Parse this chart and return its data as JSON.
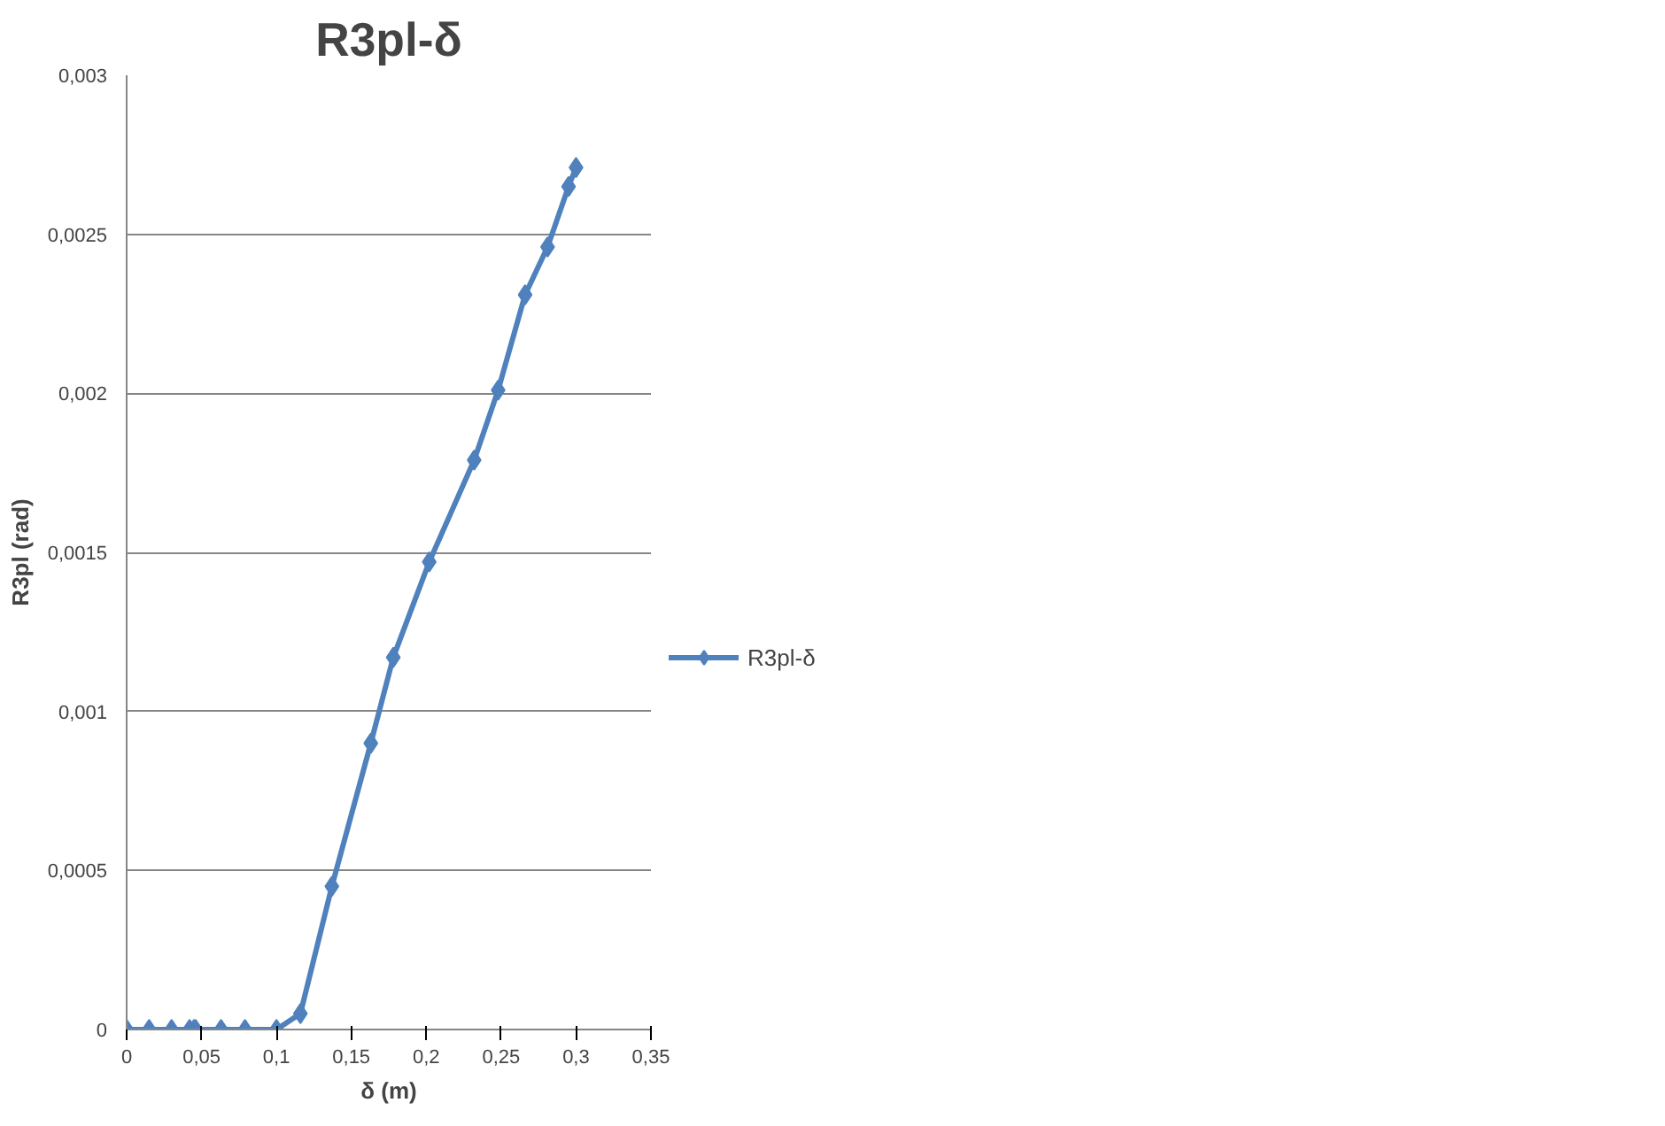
{
  "chart_data": {
    "type": "line",
    "title": "R3pl-δ",
    "xlabel": "δ (m)",
    "ylabel": "R3pl (rad)",
    "xlim": [
      0,
      0.35
    ],
    "ylim": [
      0,
      0.003
    ],
    "xticks": [
      0,
      {
        "value": 0.05,
        "label": "0,05"
      },
      {
        "value": 0.1,
        "label": "0,1"
      },
      {
        "value": 0.15,
        "label": "0,15"
      },
      {
        "value": 0.2,
        "label": "0,2"
      },
      {
        "value": 0.25,
        "label": "0,25"
      },
      {
        "value": 0.3,
        "label": "0,3"
      },
      {
        "value": 0.35,
        "label": "0,35"
      }
    ],
    "yticks": [
      0,
      {
        "value": 0.0005,
        "label": "0,0005"
      },
      {
        "value": 0.001,
        "label": "0,001"
      },
      {
        "value": 0.0015,
        "label": "0,0015"
      },
      {
        "value": 0.002,
        "label": "0,002"
      },
      {
        "value": 0.0025,
        "label": "0,0025"
      },
      {
        "value": 0.003,
        "label": "0,003"
      }
    ],
    "grid": "y",
    "legend": "right",
    "marker": "diamond",
    "line_style": "solid",
    "series": [
      {
        "name": "R3pl-δ",
        "color": "#4f81bd",
        "x": [
          0,
          0.015,
          0.03,
          0.042,
          0.045,
          0.046,
          0.063,
          0.079,
          0.1,
          0.116,
          0.137,
          0.163,
          0.178,
          0.202,
          0.232,
          0.248,
          0.266,
          0.281,
          0.295,
          0.3
        ],
        "values": [
          0,
          0,
          0,
          0,
          0,
          0,
          0,
          0,
          0,
          5e-05,
          0.00045,
          0.0009,
          0.00117,
          0.00147,
          0.00179,
          0.00201,
          0.00231,
          0.00246,
          0.00265,
          0.00271
        ]
      }
    ]
  }
}
